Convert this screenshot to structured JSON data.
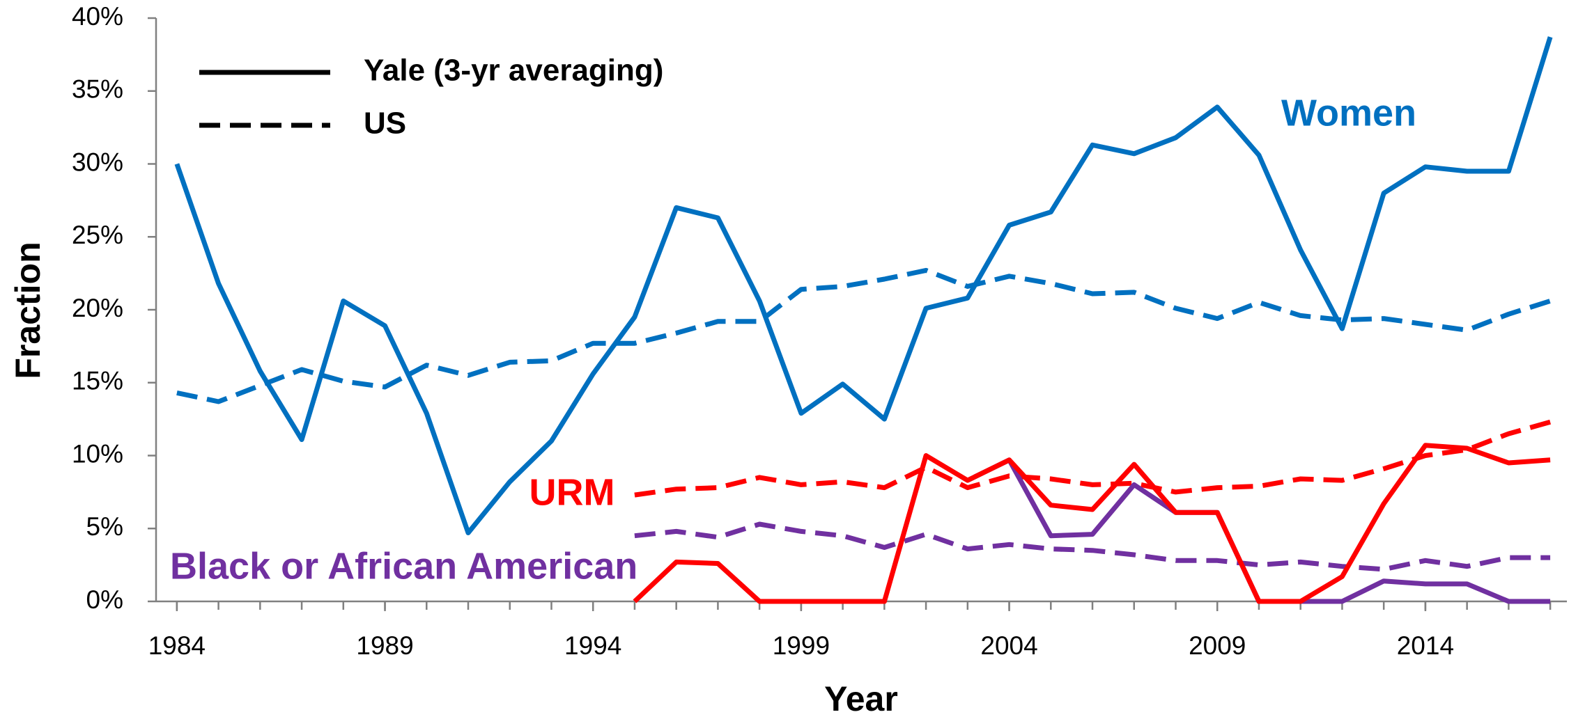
{
  "chart_data": {
    "type": "line",
    "x_label": "Year",
    "y_label": "Fraction",
    "xlim": [
      1983.5,
      2017.4
    ],
    "ylim": [
      0,
      40
    ],
    "xticks": [
      1984,
      1989,
      1994,
      1999,
      2004,
      2009,
      2014
    ],
    "yticks": [
      {
        "value": 0,
        "label": "0%"
      },
      {
        "value": 5,
        "label": "5%"
      },
      {
        "value": 10,
        "label": "10%"
      },
      {
        "value": 15,
        "label": "15%"
      },
      {
        "value": 20,
        "label": "20%"
      },
      {
        "value": 25,
        "label": "25%"
      },
      {
        "value": 30,
        "label": "30%"
      },
      {
        "value": 35,
        "label": "35%"
      },
      {
        "value": 40,
        "label": "40%"
      }
    ],
    "legend": [
      {
        "label": "Yale (3-yr averaging)",
        "style": "solid"
      },
      {
        "label": "US",
        "style": "dashed"
      }
    ],
    "x": [
      1984,
      1985,
      1986,
      1987,
      1988,
      1989,
      1990,
      1991,
      1992,
      1993,
      1994,
      1995,
      1996,
      1997,
      1998,
      1999,
      2000,
      2001,
      2002,
      2003,
      2004,
      2005,
      2006,
      2007,
      2008,
      2009,
      2010,
      2011,
      2012,
      2013,
      2014,
      2015,
      2016,
      2017
    ],
    "groups": [
      {
        "label": "Women",
        "color": "#0070c0",
        "yale": [
          30.0,
          21.8,
          15.8,
          11.1,
          20.6,
          18.9,
          12.9,
          4.7,
          8.2,
          11.0,
          15.6,
          19.5,
          27.0,
          26.3,
          20.6,
          12.9,
          14.9,
          12.5,
          20.1,
          20.8,
          25.8,
          26.7,
          31.3,
          30.7,
          31.8,
          33.9,
          30.6,
          24.1,
          18.7,
          28.0,
          29.8,
          29.5,
          29.5,
          38.7
        ],
        "us": [
          14.3,
          13.7,
          14.8,
          15.9,
          15.1,
          14.7,
          16.2,
          15.5,
          16.4,
          16.5,
          17.7,
          17.7,
          18.4,
          19.2,
          19.2,
          21.4,
          21.6,
          22.1,
          22.7,
          21.6,
          22.3,
          21.8,
          21.1,
          21.2,
          20.1,
          19.4,
          20.5,
          19.6,
          19.3,
          19.4,
          19.0,
          18.6,
          19.7,
          20.6
        ]
      },
      {
        "label": "Black or African American",
        "color": "#7030a0",
        "yale": [
          null,
          null,
          null,
          null,
          null,
          null,
          null,
          null,
          null,
          null,
          null,
          null,
          null,
          null,
          null,
          null,
          null,
          null,
          null,
          8.3,
          9.7,
          4.5,
          4.6,
          8.0,
          6.1,
          6.1,
          0,
          0,
          0,
          1.4,
          1.2,
          1.2,
          0,
          0
        ],
        "us": [
          null,
          null,
          null,
          null,
          null,
          null,
          null,
          null,
          null,
          null,
          null,
          4.5,
          4.8,
          4.4,
          5.3,
          4.8,
          4.5,
          3.7,
          4.6,
          3.6,
          3.9,
          3.6,
          3.5,
          3.2,
          2.8,
          2.8,
          2.5,
          2.7,
          2.4,
          2.2,
          2.8,
          2.4,
          3.0,
          3.0
        ]
      },
      {
        "label": "URM",
        "color": "#ff0000",
        "yale": [
          null,
          null,
          null,
          null,
          null,
          null,
          null,
          null,
          null,
          null,
          null,
          0,
          2.7,
          2.6,
          0,
          0,
          0,
          0,
          10.0,
          8.3,
          9.7,
          6.6,
          6.3,
          9.4,
          6.1,
          6.1,
          0,
          0,
          1.7,
          6.7,
          10.7,
          10.5,
          9.5,
          9.7
        ],
        "us": [
          null,
          null,
          null,
          null,
          null,
          null,
          null,
          null,
          null,
          null,
          null,
          7.3,
          7.7,
          7.8,
          8.5,
          8.0,
          8.2,
          7.8,
          9.2,
          7.8,
          8.6,
          8.4,
          8.0,
          8.1,
          7.5,
          7.8,
          7.9,
          8.4,
          8.3,
          9.1,
          10.0,
          10.4,
          11.5,
          12.3
        ]
      }
    ]
  }
}
